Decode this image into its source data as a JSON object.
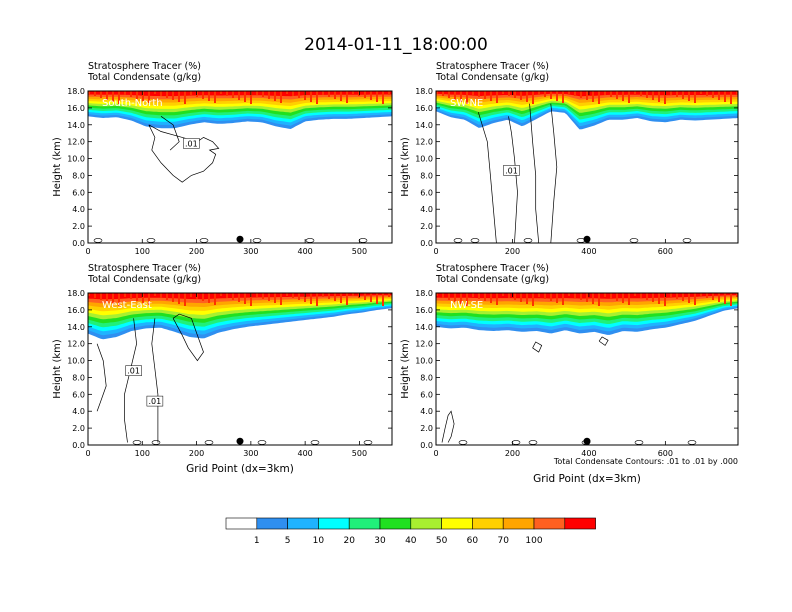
{
  "title": "2014-01-11_18:00:00",
  "colors": [
    "#ffffff",
    "#2f8ff0",
    "#1fb3ff",
    "#00ffff",
    "#20f07a",
    "#20e020",
    "#a8f030",
    "#ffff00",
    "#ffd000",
    "#ffa500",
    "#ff6020",
    "#ff0000"
  ],
  "colorbar_labels": [
    "1",
    "5",
    "10",
    "20",
    "30",
    "40",
    "50",
    "60",
    "70",
    "100"
  ],
  "contour_note": "Total Condensate Contours: .01 to .01 by .000",
  "chart_data": [
    {
      "type": "heatmap",
      "label": "South-North",
      "header1": "Stratosphere Tracer   (%)",
      "header2": "Total Condensate   (g/kg)",
      "ylabel": "Height (km)",
      "xlabel": "",
      "xlim": [
        0,
        560
      ],
      "ylim": [
        0,
        18
      ],
      "xticks": [
        0,
        100,
        200,
        300,
        400,
        500
      ],
      "yticks": [
        "0.0",
        "2.0",
        "4.0",
        "6.0",
        "8.0",
        "10.0",
        "12.0",
        "14.0",
        "16.0",
        "18.0"
      ],
      "tracer_base_km": [
        15.0,
        14.8,
        14.9,
        14.5,
        13.8,
        13.6,
        13.6,
        14.0,
        14.3,
        14.1,
        14.2,
        14.4,
        14.3,
        13.8,
        13.5,
        14.4,
        14.6,
        14.7,
        14.7,
        14.8,
        14.9,
        15.0
      ],
      "contour_label": ".01",
      "marker_x": 280
    },
    {
      "type": "heatmap",
      "label": "SW-NE",
      "header1": "Stratosphere Tracer   (%)",
      "header2": "Total Condensate   (g/kg)",
      "ylabel": "Height (km)",
      "xlabel": "",
      "xlim": [
        0,
        790
      ],
      "ylim": [
        0,
        18
      ],
      "xticks": [
        0,
        200,
        400,
        600
      ],
      "yticks": [
        "0.0",
        "2.0",
        "4.0",
        "6.0",
        "8.0",
        "10.0",
        "12.0",
        "14.0",
        "16.0",
        "18.0"
      ],
      "tracer_base_km": [
        15.6,
        14.9,
        14.6,
        13.6,
        14.2,
        14.6,
        13.8,
        14.7,
        15.6,
        15.4,
        13.4,
        13.9,
        14.6,
        14.6,
        14.8,
        14.4,
        14.3,
        14.6,
        14.5,
        14.6,
        14.7,
        14.8
      ],
      "contour_label": ".01",
      "marker_x": 395
    },
    {
      "type": "heatmap",
      "label": "West-East",
      "header1": "Stratosphere Tracer   (%)",
      "header2": "Total Condensate   (g/kg)",
      "ylabel": "Height (km)",
      "xlabel": "Grid Point (dx=3km)",
      "xlim": [
        0,
        560
      ],
      "ylim": [
        0,
        18
      ],
      "xticks": [
        0,
        100,
        200,
        300,
        400,
        500
      ],
      "yticks": [
        "0.0",
        "2.0",
        "4.0",
        "6.0",
        "8.0",
        "10.0",
        "12.0",
        "14.0",
        "16.0",
        "18.0"
      ],
      "tracer_base_km": [
        13.2,
        12.5,
        12.8,
        13.5,
        13.8,
        13.9,
        13.4,
        12.8,
        12.6,
        13.3,
        13.7,
        14.0,
        14.2,
        14.4,
        14.6,
        14.8,
        15.0,
        15.2,
        15.5,
        15.7,
        16.0,
        16.2
      ],
      "contour_label": ".01",
      "marker_x": 280
    },
    {
      "type": "heatmap",
      "label": "NW-SE",
      "header1": "Stratosphere Tracer   (%)",
      "header2": "Total Condensate   (g/kg)",
      "ylabel": "Height (km)",
      "xlabel": "Grid Point (dx=3km)",
      "xlim": [
        0,
        790
      ],
      "ylim": [
        0,
        18
      ],
      "xticks": [
        0,
        200,
        400,
        600
      ],
      "yticks": [
        "0.0",
        "2.0",
        "4.0",
        "6.0",
        "8.0",
        "10.0",
        "12.0",
        "14.0",
        "16.0",
        "18.0"
      ],
      "tracer_base_km": [
        14.0,
        13.8,
        13.9,
        13.6,
        13.5,
        13.6,
        13.4,
        13.5,
        13.2,
        13.6,
        13.2,
        13.4,
        13.0,
        13.5,
        13.4,
        13.7,
        13.9,
        14.3,
        14.7,
        15.3,
        15.9,
        16.2
      ],
      "contour_label": "",
      "marker_x": 395
    }
  ]
}
